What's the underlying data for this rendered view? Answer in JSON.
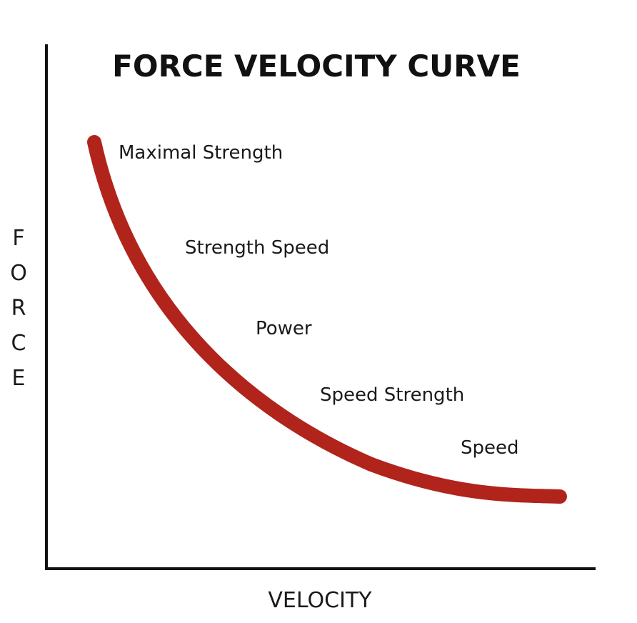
{
  "chart_data": {
    "type": "line",
    "title": "FORCE VELOCITY CURVE",
    "xlabel": "VELOCITY",
    "ylabel": "FORCE",
    "grid": false,
    "legend": "none",
    "series_color": "#b0241c",
    "axis_color": "#111111",
    "annotations": [
      "Maximal Strength",
      "Strength Speed",
      "Power",
      "Speed Strength",
      "Speed"
    ]
  }
}
